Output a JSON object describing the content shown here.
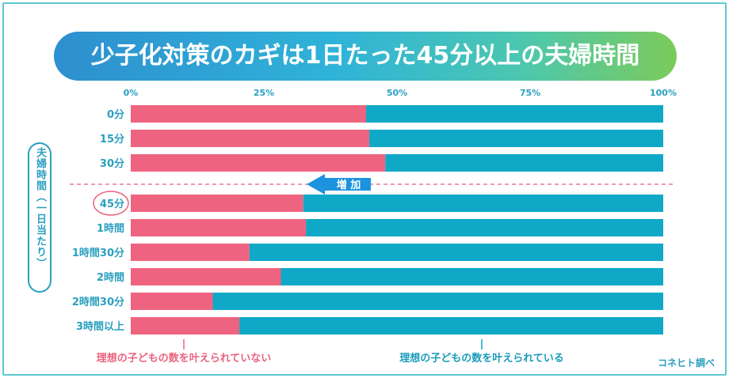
{
  "title": "少子化対策のカギは1日たった45分以上の夫婦時間",
  "y_axis_label": "夫婦時間（一日当たり）",
  "arrow_label": "増 加",
  "source": "コネヒト調べ",
  "colors": {
    "not_fulfilled": "#ee6480",
    "fulfilled": "#10a8c7",
    "accent": "#2b9fc0"
  },
  "chart_data": {
    "type": "bar",
    "orientation": "horizontal",
    "stacked": true,
    "categories": [
      "0分",
      "15分",
      "30分",
      "45分",
      "1時間",
      "1時間30分",
      "2時間",
      "2時間30分",
      "3時間以上"
    ],
    "highlight_category": "45分",
    "x_ticks": [
      "0%",
      "25%",
      "50%",
      "75%",
      "100%"
    ],
    "xlim": [
      0,
      100
    ],
    "series": [
      {
        "name": "理想の子どもの数を叶えられていない",
        "values": [
          44.2,
          44.8,
          47.8,
          32.4,
          32.9,
          22.3,
          28.2,
          15.4,
          20.4
        ]
      },
      {
        "name": "理想の子どもの数を叶えられている",
        "values": [
          55.8,
          55.2,
          52.2,
          67.6,
          67.1,
          77.7,
          71.8,
          84.6,
          79.6
        ]
      }
    ]
  }
}
